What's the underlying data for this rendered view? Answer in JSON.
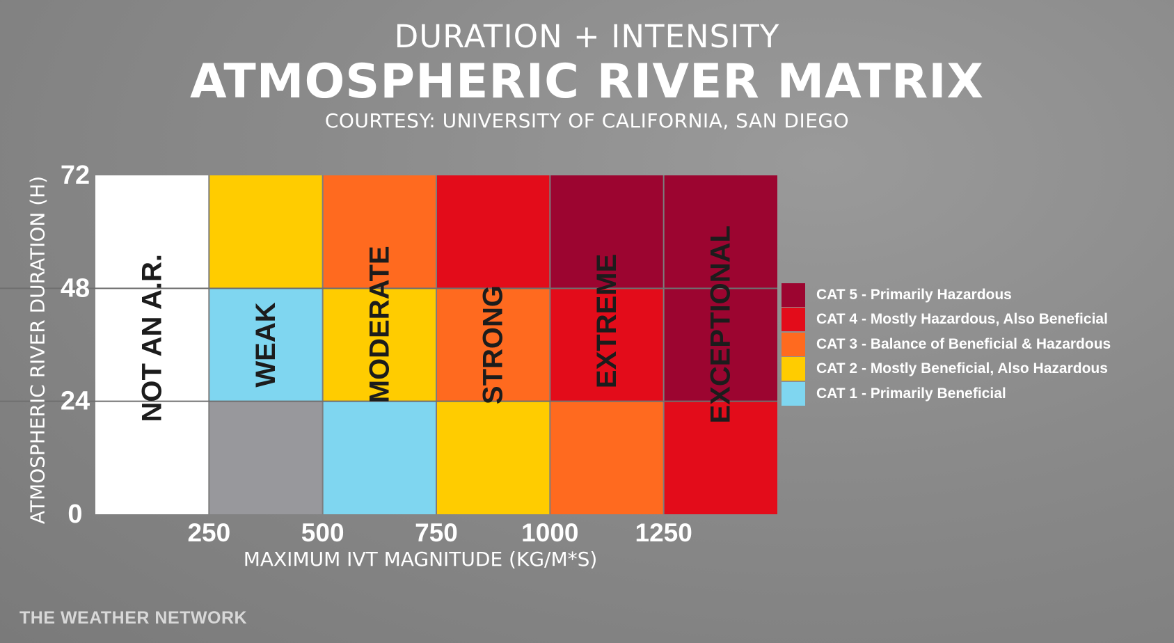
{
  "header": {
    "kicker": "DURATION + INTENSITY",
    "title": "ATMOSPHERIC RIVER MATRIX",
    "courtesy": "COURTESY: UNIVERSITY OF CALIFORNIA, SAN DIEGO"
  },
  "chart_data": {
    "type": "heatmap",
    "xlabel": "MAXIMUM IVT MAGNITUDE (KG/M*S)",
    "ylabel": "ATMOSPHERIC RIVER DURATION (H)",
    "x_edges": [
      0,
      250,
      500,
      750,
      1000,
      1250,
      1500
    ],
    "y_edges": [
      0,
      24,
      48,
      72
    ],
    "x_ticks": [
      "250",
      "500",
      "750",
      "1000",
      "1250"
    ],
    "y_ticks": [
      "0",
      "24",
      "48",
      "72"
    ],
    "xlim": [
      0,
      1500
    ],
    "ylim": [
      0,
      72
    ],
    "grid": true,
    "legend_position": "right",
    "columns": [
      "NOT AN A.R.",
      "WEAK",
      "MODERATE",
      "STRONG",
      "EXTREME",
      "EXCEPTIONAL"
    ],
    "cells": [
      [
        "none",
        "none",
        "none"
      ],
      [
        "below",
        "1",
        "2"
      ],
      [
        "1",
        "2",
        "3"
      ],
      [
        "2",
        "3",
        "4"
      ],
      [
        "3",
        "4",
        "5"
      ],
      [
        "4",
        "5",
        "5"
      ]
    ],
    "colors": {
      "none": "#ffffff",
      "below": "#98989c",
      "1": "#7fd6f0",
      "2": "#ffcc00",
      "3": "#ff6a1f",
      "4": "#e30c1a",
      "5": "#9c0530"
    },
    "legend": [
      {
        "key": "5",
        "label": "CAT 5 - Primarily Hazardous"
      },
      {
        "key": "4",
        "label": "CAT 4 - Mostly Hazardous, Also Beneficial"
      },
      {
        "key": "3",
        "label": "CAT 3 - Balance of Beneficial & Hazardous"
      },
      {
        "key": "2",
        "label": "CAT 2 - Mostly Beneficial, Also Hazardous"
      },
      {
        "key": "1",
        "label": "CAT 1 - Primarily Beneficial"
      }
    ]
  },
  "footer": {
    "brand": "THE WEATHER NETWORK"
  }
}
